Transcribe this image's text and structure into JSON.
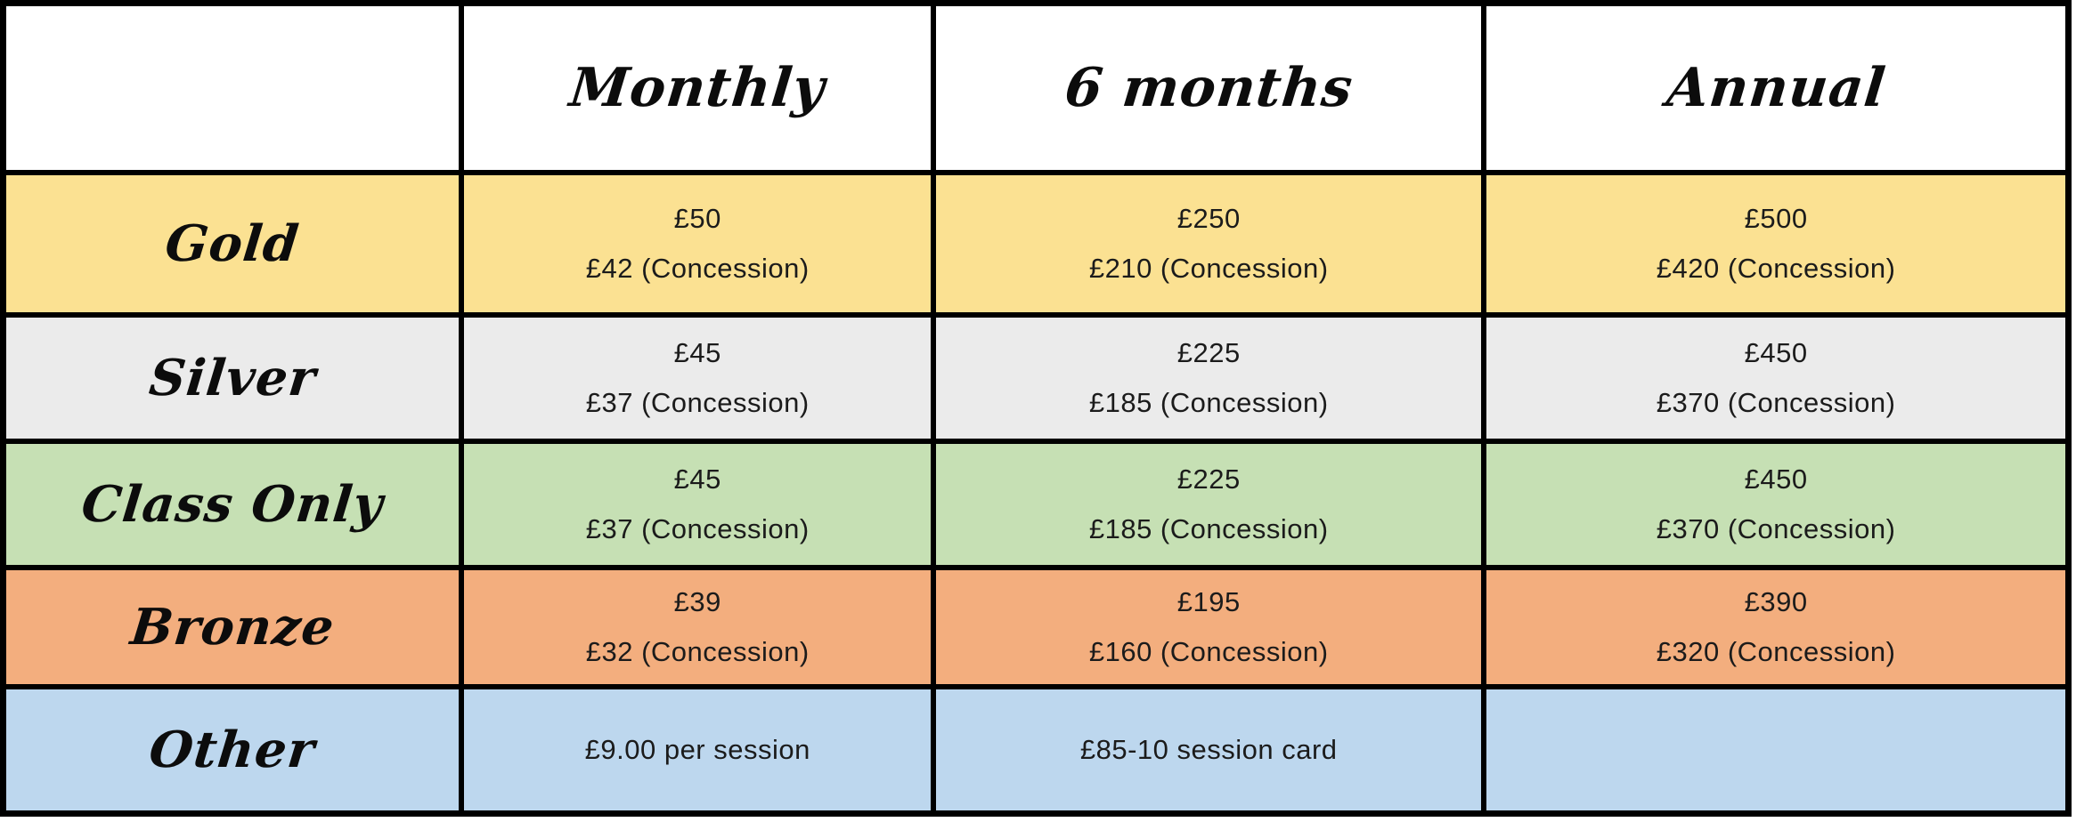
{
  "colors": {
    "gold_row": "#FBE192",
    "silver_row": "#EBEBEB",
    "class_only_row": "#C6E0B4",
    "bronze_row": "#F3AE7E",
    "other_row": "#BDD7EE",
    "grid_border": "#000000",
    "header_background": "#FFFFFF",
    "text": "#1B1B1B"
  },
  "chart_data": {
    "type": "table",
    "title": "",
    "columns": [
      "",
      "Monthly",
      "6 months",
      "Annual"
    ],
    "rows": [
      {
        "label": "Gold",
        "bg": "#FBE192",
        "monthly": [
          "£50",
          "£42 (Concession)"
        ],
        "six_months": [
          "£250",
          "£210 (Concession)"
        ],
        "annual": [
          "£500",
          "£420 (Concession)"
        ]
      },
      {
        "label": "Silver",
        "bg": "#EBEBEB",
        "monthly": [
          "£45",
          "£37 (Concession)"
        ],
        "six_months": [
          "£225",
          "£185 (Concession)"
        ],
        "annual": [
          "£450",
          "£370 (Concession)"
        ]
      },
      {
        "label": "Class Only",
        "bg": "#C6E0B4",
        "monthly": [
          "£45",
          "£37 (Concession)"
        ],
        "six_months": [
          "£225",
          "£185 (Concession)"
        ],
        "annual": [
          "£450",
          "£370 (Concession)"
        ]
      },
      {
        "label": "Bronze",
        "bg": "#F3AE7E",
        "monthly": [
          "£39",
          "£32 (Concession)"
        ],
        "six_months": [
          "£195",
          "£160 (Concession)"
        ],
        "annual": [
          "£390",
          "£320 (Concession)"
        ]
      },
      {
        "label": "Other",
        "bg": "#BDD7EE",
        "monthly": [
          "£9.00 per session"
        ],
        "six_months": [
          "£85-10 session card"
        ],
        "annual": []
      }
    ]
  }
}
